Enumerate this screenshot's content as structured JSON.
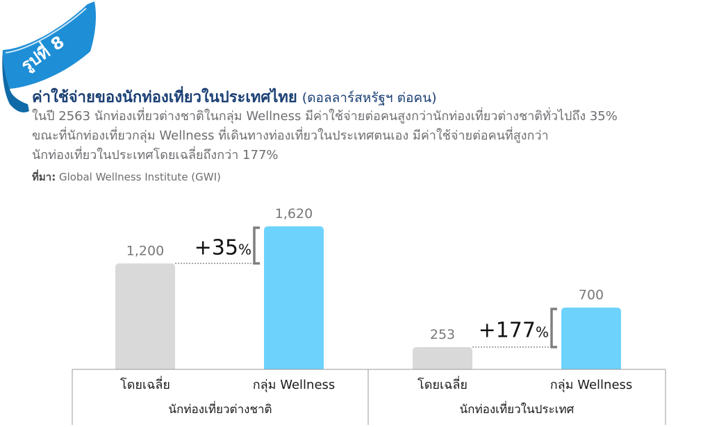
{
  "badge": {
    "text": "รูปที่ 8"
  },
  "header": {
    "title": "ค่าใช้จ่ายของนักท่องเที่ยวในประเทศไทย",
    "title_unit": "(ดอลลาร์สหรัฐฯ ต่อคน)",
    "description_lines": [
      "ในปี 2563 นักท่องเที่ยวต่างชาติในกลุ่ม Wellness มีค่าใช้จ่ายต่อคนสูงกว่านักท่องเที่ยวต่างชาติทั่วไปถึง 35%",
      "ขณะที่นักท่องเที่ยวกลุ่ม Wellness ที่เดินทางท่องเที่ยวในประเทศตนเอง มีค่าใช้จ่ายต่อคนที่สูงกว่า",
      "นักท่องเที่ยวในประเทศโดยเฉลี่ยถึงกว่า 177%"
    ],
    "source_label": "ที่มา:",
    "source_text": "Global Wellness Institute (GWI)"
  },
  "colors": {
    "badge": "#1e8ed6",
    "title": "#1a3f73",
    "bar_average": "#d9d9d9",
    "bar_wellness": "#6dd3fc",
    "bracket": "#7f7f7f"
  },
  "chart_data": {
    "type": "bar",
    "groups": [
      {
        "name": "นักท่องเที่ยวต่างชาติ",
        "bars": [
          {
            "category": "โดยเฉลี่ย",
            "value": 1200,
            "label": "1,200"
          },
          {
            "category": "กลุ่ม Wellness",
            "value": 1620,
            "label": "1,620"
          }
        ],
        "difference": {
          "number": "+35",
          "unit": "%"
        }
      },
      {
        "name": "นักท่องเที่ยวในประเทศ",
        "bars": [
          {
            "category": "โดยเฉลี่ย",
            "value": 253,
            "label": "253"
          },
          {
            "category": "กลุ่ม Wellness",
            "value": 700,
            "label": "700"
          }
        ],
        "difference": {
          "number": "+177",
          "unit": "%"
        }
      }
    ],
    "ylim": [
      0,
      1620
    ],
    "grid": false,
    "legend": "none"
  }
}
